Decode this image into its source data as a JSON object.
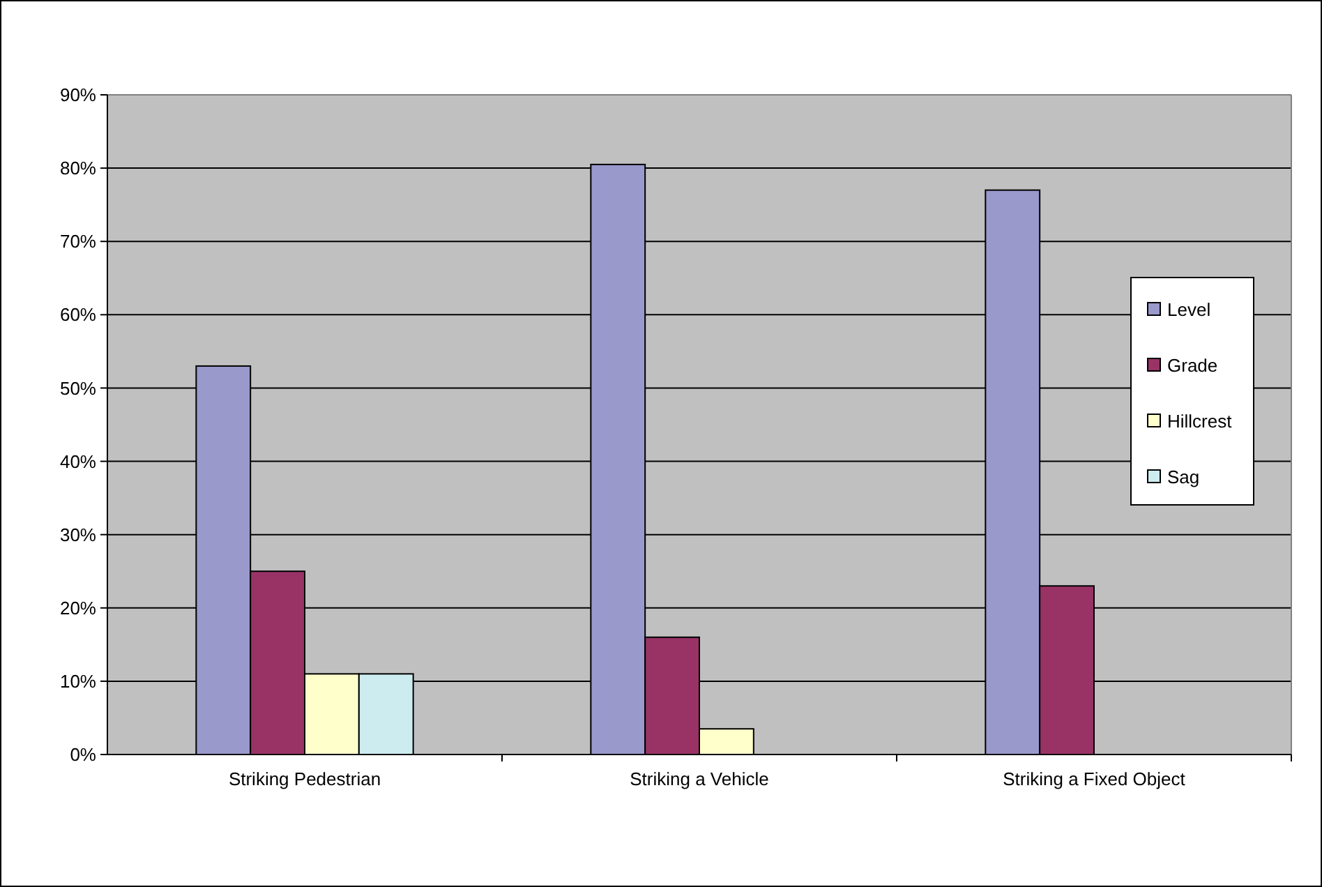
{
  "chart_data": {
    "type": "bar",
    "categories": [
      "Striking Pedestrian",
      "Striking a Vehicle",
      "Striking a Fixed Object"
    ],
    "series": [
      {
        "name": "Level",
        "color": "#9999cc",
        "values": [
          53,
          80.5,
          77
        ]
      },
      {
        "name": "Grade",
        "color": "#993366",
        "values": [
          25,
          16,
          23
        ]
      },
      {
        "name": "Hillcrest",
        "color": "#ffffcc",
        "values": [
          11,
          3.5,
          null
        ]
      },
      {
        "name": "Sag",
        "color": "#ccecf0",
        "values": [
          11,
          null,
          null
        ]
      }
    ],
    "ylim": [
      0,
      90
    ],
    "yticks": [
      {
        "value": 0,
        "label": "0%"
      },
      {
        "value": 10,
        "label": "10%"
      },
      {
        "value": 20,
        "label": "20%"
      },
      {
        "value": 30,
        "label": "30%"
      },
      {
        "value": 40,
        "label": "40%"
      },
      {
        "value": 50,
        "label": "50%"
      },
      {
        "value": 60,
        "label": "60%"
      },
      {
        "value": 70,
        "label": "70%"
      },
      {
        "value": 80,
        "label": "80%"
      },
      {
        "value": 90,
        "label": "90%"
      }
    ],
    "grid": "y",
    "legend": "right"
  }
}
